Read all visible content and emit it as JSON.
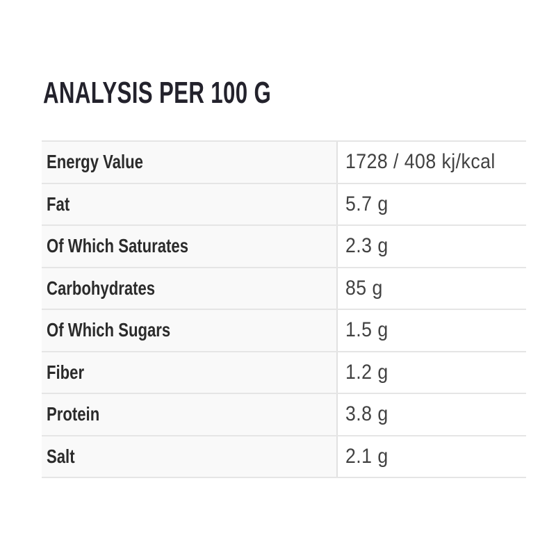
{
  "page": {
    "title": "ANALYSIS PER 100 G"
  },
  "table": {
    "rows": [
      {
        "label": "Energy Value",
        "value": "1728 / 408 kj/kcal"
      },
      {
        "label": "Fat",
        "value": "5.7 g"
      },
      {
        "label": "Of Which Saturates",
        "value": "2.3 g"
      },
      {
        "label": "Carbohydrates",
        "value": "85 g"
      },
      {
        "label": "Of Which Sugars",
        "value": "1.5 g"
      },
      {
        "label": "Fiber",
        "value": "1.2 g"
      },
      {
        "label": "Protein",
        "value": "3.8 g"
      },
      {
        "label": "Salt",
        "value": "2.1 g"
      }
    ]
  },
  "colors": {
    "page_bg": "#ffffff",
    "title_text": "#23222c",
    "label_text": "#2b2b2b",
    "value_text": "#424242",
    "row_border": "#e5e5e5",
    "column_divider": "#e1e1e1",
    "label_cell_bg": "#f9f9f9"
  }
}
